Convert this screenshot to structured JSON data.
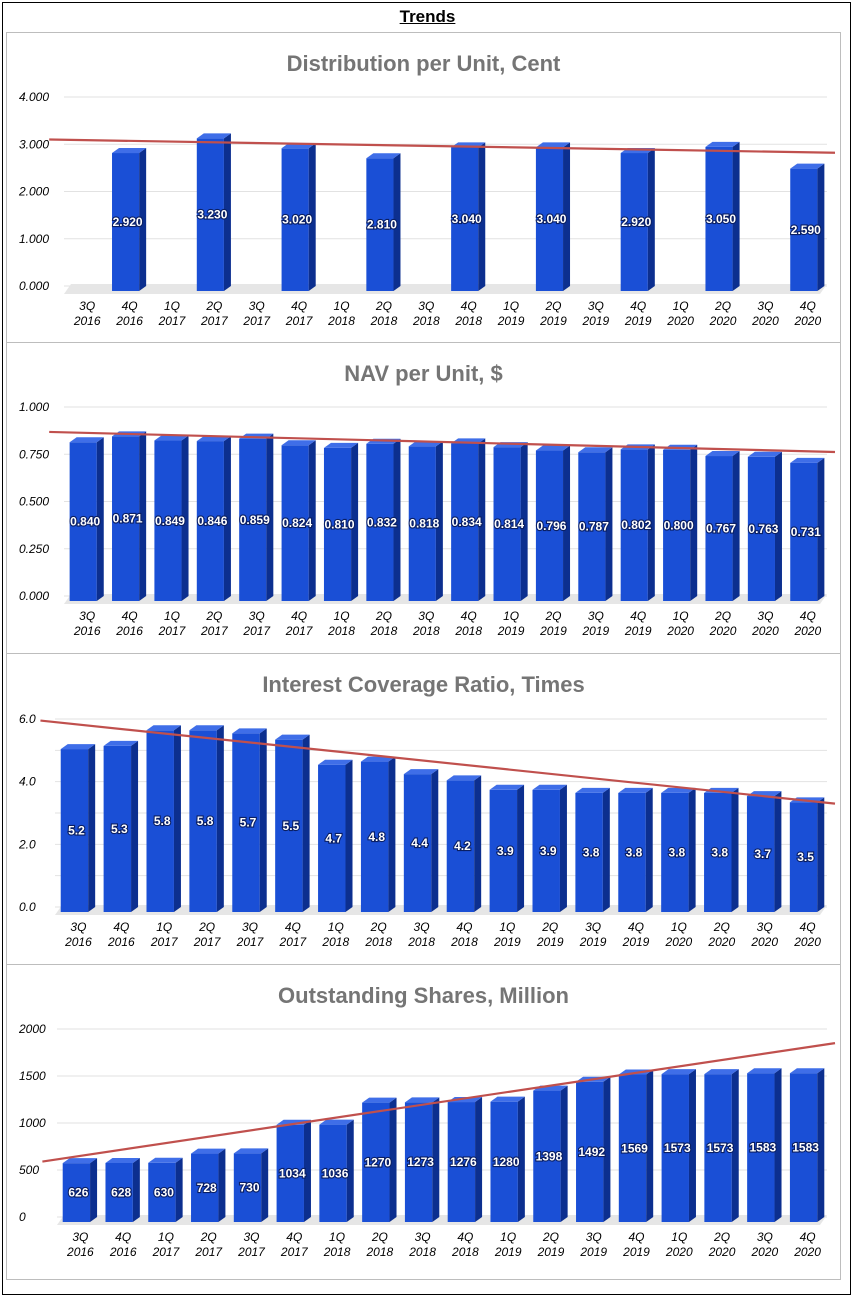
{
  "page_title": "Trends",
  "colors": {
    "bar_front": "#1a4fd6",
    "bar_side": "#0c2f8f",
    "bar_top": "#3f6ee8",
    "trend": "#c0504d",
    "grid": "#e2e2e2",
    "title_text": "#757575"
  },
  "chart_data": [
    {
      "type": "bar",
      "title": "Distribution per Unit, Cent",
      "categories": [
        "3Q 2016",
        "4Q 2016",
        "1Q 2017",
        "2Q 2017",
        "3Q 2017",
        "4Q 2017",
        "1Q 2018",
        "2Q 2018",
        "3Q 2018",
        "4Q 2018",
        "1Q 2019",
        "2Q 2019",
        "3Q 2019",
        "4Q 2019",
        "1Q 2020",
        "2Q 2020",
        "3Q 2020",
        "4Q 2020"
      ],
      "values": [
        null,
        2.92,
        null,
        3.23,
        null,
        3.02,
        null,
        2.81,
        null,
        3.04,
        null,
        3.04,
        null,
        2.92,
        null,
        3.05,
        null,
        2.59
      ],
      "labels": [
        "",
        "2.920",
        "",
        "3.230",
        "",
        "3.020",
        "",
        "2.810",
        "",
        "3.040",
        "",
        "3.040",
        "",
        "2.920",
        "",
        "3.050",
        "",
        "2.590"
      ],
      "yticks": [
        "0.000",
        "1.000",
        "2.000",
        "3.000",
        "4.000"
      ],
      "ylim": [
        0,
        4
      ],
      "trendline": [
        3.1,
        2.82
      ]
    },
    {
      "type": "bar",
      "title": "NAV per Unit, $",
      "categories": [
        "3Q 2016",
        "4Q 2016",
        "1Q 2017",
        "2Q 2017",
        "3Q 2017",
        "4Q 2017",
        "1Q 2018",
        "2Q 2018",
        "3Q 2018",
        "4Q 2018",
        "1Q 2019",
        "2Q 2019",
        "3Q 2019",
        "4Q 2019",
        "1Q 2020",
        "2Q 2020",
        "3Q 2020",
        "4Q 2020"
      ],
      "values": [
        0.84,
        0.871,
        0.849,
        0.846,
        0.859,
        0.824,
        0.81,
        0.832,
        0.818,
        0.834,
        0.814,
        0.796,
        0.787,
        0.802,
        0.8,
        0.767,
        0.763,
        0.731
      ],
      "labels": [
        "0.840",
        "0.871",
        "0.849",
        "0.846",
        "0.859",
        "0.824",
        "0.810",
        "0.832",
        "0.818",
        "0.834",
        "0.814",
        "0.796",
        "0.787",
        "0.802",
        "0.800",
        "0.767",
        "0.763",
        "0.731"
      ],
      "yticks": [
        "0.000",
        "0.250",
        "0.500",
        "0.750",
        "1.000"
      ],
      "ylim": [
        0,
        1
      ],
      "trendline": [
        0.868,
        0.762
      ]
    },
    {
      "type": "bar",
      "title": "Interest Coverage Ratio, Times",
      "categories": [
        "3Q 2016",
        "4Q 2016",
        "1Q 2017",
        "2Q 2017",
        "3Q 2017",
        "4Q 2017",
        "1Q 2018",
        "2Q 2018",
        "3Q 2018",
        "4Q 2018",
        "1Q 2019",
        "2Q 2019",
        "3Q 2019",
        "4Q 2019",
        "1Q 2020",
        "2Q 2020",
        "3Q 2020",
        "4Q 2020"
      ],
      "values": [
        5.2,
        5.3,
        5.8,
        5.8,
        5.7,
        5.5,
        4.7,
        4.8,
        4.4,
        4.2,
        3.9,
        3.9,
        3.8,
        3.8,
        3.8,
        3.8,
        3.7,
        3.5
      ],
      "labels": [
        "5.2",
        "5.3",
        "5.8",
        "5.8",
        "5.7",
        "5.5",
        "4.7",
        "4.8",
        "4.4",
        "4.2",
        "3.9",
        "3.9",
        "3.8",
        "3.8",
        "3.8",
        "3.8",
        "3.7",
        "3.5"
      ],
      "yticks": [
        "0.0",
        "2.0",
        "4.0",
        "6.0"
      ],
      "ylim": [
        0,
        6
      ],
      "trendline": [
        5.95,
        3.3
      ]
    },
    {
      "type": "bar",
      "title": "Outstanding Shares, Million",
      "categories": [
        "3Q 2016",
        "4Q 2016",
        "1Q 2017",
        "2Q 2017",
        "3Q 2017",
        "4Q 2017",
        "1Q 2018",
        "2Q 2018",
        "3Q 2018",
        "4Q 2018",
        "1Q 2019",
        "2Q 2019",
        "3Q 2019",
        "4Q 2019",
        "1Q 2020",
        "2Q 2020",
        "3Q 2020",
        "4Q 2020"
      ],
      "values": [
        626,
        628,
        630,
        728,
        730,
        1034,
        1036,
        1270,
        1273,
        1276,
        1280,
        1398,
        1492,
        1569,
        1573,
        1573,
        1583,
        1583
      ],
      "labels": [
        "626",
        "628",
        "630",
        "728",
        "730",
        "1034",
        "1036",
        "1270",
        "1273",
        "1276",
        "1280",
        "1398",
        "1492",
        "1569",
        "1573",
        "1573",
        "1583",
        "1583"
      ],
      "yticks": [
        "0",
        "500",
        "1000",
        "1500",
        "2000"
      ],
      "ylim": [
        0,
        2000
      ],
      "trendline": [
        590,
        1850
      ]
    }
  ]
}
